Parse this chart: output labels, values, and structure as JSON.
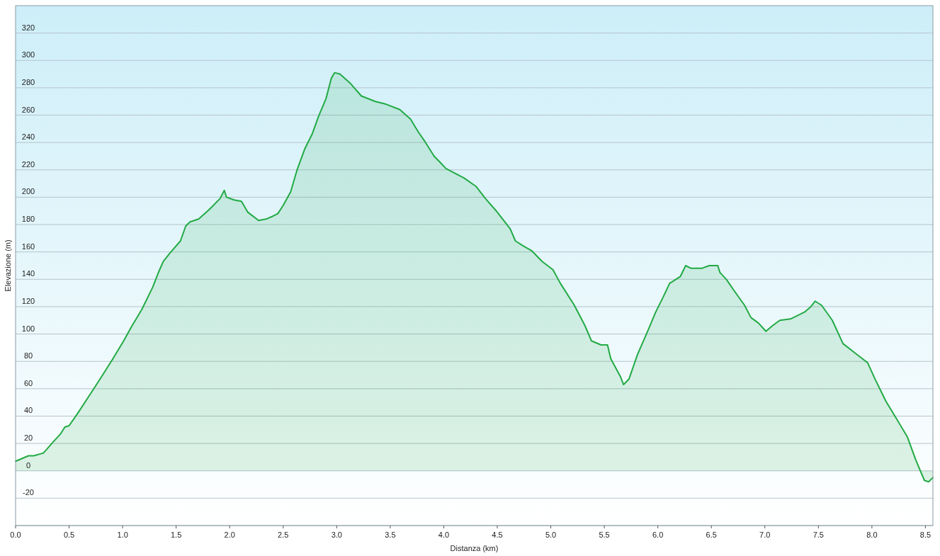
{
  "chart_data": {
    "type": "area",
    "xlabel": "Distanza  (km)",
    "ylabel": "Elevazione (m)",
    "grid": "y",
    "xlim": [
      0,
      8.57
    ],
    "ylim": [
      -40,
      340
    ],
    "xticks": [
      {
        "value": 0,
        "label": "0.0"
      },
      {
        "value": 0.5,
        "label": "0.5"
      },
      {
        "value": 1,
        "label": "1.0"
      },
      {
        "value": 1.5,
        "label": "1.5"
      },
      {
        "value": 2,
        "label": "2.0"
      },
      {
        "value": 2.5,
        "label": "2.5"
      },
      {
        "value": 3,
        "label": "3.0"
      },
      {
        "value": 3.5,
        "label": "3.5"
      },
      {
        "value": 4,
        "label": "4.0"
      },
      {
        "value": 4.5,
        "label": "4.5"
      },
      {
        "value": 5,
        "label": "5.0"
      },
      {
        "value": 5.5,
        "label": "5.5"
      },
      {
        "value": 6,
        "label": "6.0"
      },
      {
        "value": 6.5,
        "label": "6.5"
      },
      {
        "value": 7,
        "label": "7.0"
      },
      {
        "value": 7.5,
        "label": "7.5"
      },
      {
        "value": 8,
        "label": "8.0"
      },
      {
        "value": 8.5,
        "label": "8.5"
      }
    ],
    "yticks": [
      {
        "value": -40,
        "label": null
      },
      -20,
      0,
      20,
      40,
      60,
      80,
      100,
      120,
      140,
      160,
      180,
      200,
      220,
      240,
      260,
      280,
      300,
      320
    ],
    "x": [
      0,
      0.12,
      0.17,
      0.26,
      0.35,
      0.42,
      0.46,
      0.5,
      0.58,
      0.68,
      0.78,
      0.91,
      1.01,
      1.08,
      1.18,
      1.28,
      1.34,
      1.38,
      1.44,
      1.54,
      1.59,
      1.63,
      1.71,
      1.81,
      1.91,
      1.95,
      1.97,
      2.04,
      2.11,
      2.17,
      2.27,
      2.34,
      2.4,
      2.45,
      2.5,
      2.57,
      2.63,
      2.7,
      2.77,
      2.83,
      2.9,
      2.95,
      2.98,
      3.03,
      3.13,
      3.23,
      3.36,
      3.46,
      3.59,
      3.69,
      3.76,
      3.83,
      3.91,
      3.96,
      4.02,
      4.19,
      4.3,
      4.39,
      4.49,
      4.62,
      4.67,
      4.75,
      4.82,
      4.92,
      5.02,
      5.09,
      5.22,
      5.32,
      5.38,
      5.47,
      5.53,
      5.56,
      5.65,
      5.68,
      5.73,
      5.81,
      5.91,
      5.98,
      6.05,
      6.11,
      6.21,
      6.26,
      6.31,
      6.41,
      6.48,
      6.56,
      6.58,
      6.64,
      6.71,
      6.81,
      6.87,
      6.94,
      7.01,
      7.07,
      7.14,
      7.24,
      7.37,
      7.43,
      7.47,
      7.53,
      7.63,
      7.73,
      7.86,
      7.96,
      8.03,
      8.13,
      8.23,
      8.33,
      8.41,
      8.49,
      8.53,
      8.57
    ],
    "series": [
      {
        "color": "#22aa44",
        "values": [
          7,
          11,
          11,
          13,
          21,
          27,
          32,
          33,
          42,
          54,
          66,
          82,
          95,
          105,
          118,
          134,
          146,
          153,
          159,
          168,
          179,
          182,
          184,
          191,
          199,
          205,
          200,
          198,
          197,
          189,
          183,
          184,
          186,
          188,
          194,
          204,
          220,
          235,
          246,
          259,
          272,
          287,
          291,
          290,
          283,
          274,
          270,
          268,
          264,
          257,
          248,
          240,
          230,
          226,
          221,
          214,
          208,
          199,
          190,
          177,
          168,
          164,
          161,
          153,
          147,
          137,
          121,
          106,
          95,
          92,
          92,
          82,
          69,
          63,
          67,
          85,
          103,
          116,
          127,
          137,
          142,
          150,
          148,
          148,
          150,
          150,
          145,
          140,
          132,
          121,
          112,
          108,
          102,
          106,
          110,
          111,
          116,
          120,
          124,
          121,
          110,
          93,
          85,
          79,
          67,
          51,
          38,
          25,
          8,
          -7,
          -8,
          -5
        ]
      }
    ]
  }
}
